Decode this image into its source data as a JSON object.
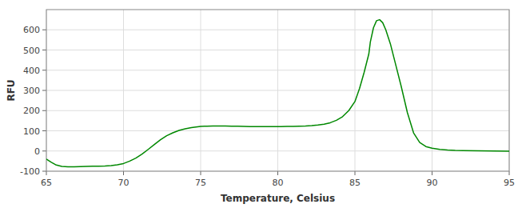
{
  "chart_data": {
    "type": "line",
    "xlabel": "Temperature, Celsius",
    "ylabel": "RFU",
    "color": "#008800",
    "grid": true,
    "xlim": [
      65,
      95
    ],
    "ylim": [
      -100,
      700
    ],
    "xticks": [
      65,
      70,
      75,
      80,
      85,
      90,
      95
    ],
    "yticks": [
      -100,
      0,
      100,
      200,
      300,
      400,
      500,
      600
    ],
    "x": [
      65.0,
      65.3,
      65.6,
      66.0,
      66.4,
      66.8,
      67.2,
      67.6,
      68.0,
      68.4,
      68.8,
      69.2,
      69.6,
      70.0,
      70.4,
      70.8,
      71.2,
      71.6,
      72.0,
      72.4,
      72.8,
      73.2,
      73.6,
      74.0,
      74.4,
      74.8,
      75.0,
      75.4,
      75.8,
      76.2,
      76.6,
      77.0,
      77.4,
      77.8,
      78.2,
      78.6,
      79.0,
      79.4,
      79.8,
      80.2,
      80.6,
      81.0,
      81.4,
      81.8,
      82.2,
      82.6,
      83.0,
      83.4,
      83.8,
      84.2,
      84.6,
      85.0,
      85.3,
      85.6,
      85.9,
      86.0,
      86.2,
      86.4,
      86.6,
      86.8,
      87.0,
      87.3,
      87.6,
      88.0,
      88.4,
      88.8,
      89.2,
      89.6,
      90.0,
      90.5,
      91.0,
      91.5,
      92.0,
      93.0,
      94.0,
      95.0
    ],
    "values": [
      -40,
      -55,
      -68,
      -76,
      -78,
      -78,
      -77,
      -76,
      -75,
      -75,
      -74,
      -72,
      -68,
      -62,
      -50,
      -35,
      -15,
      8,
      32,
      56,
      76,
      90,
      102,
      110,
      116,
      120,
      122,
      123,
      124,
      124,
      124,
      123,
      123,
      122,
      121,
      121,
      121,
      121,
      121,
      121,
      122,
      122,
      123,
      124,
      126,
      129,
      133,
      140,
      152,
      170,
      200,
      245,
      310,
      390,
      480,
      540,
      610,
      645,
      650,
      635,
      600,
      530,
      440,
      320,
      190,
      90,
      42,
      22,
      14,
      8,
      5,
      3,
      2,
      1,
      0,
      -1
    ]
  }
}
